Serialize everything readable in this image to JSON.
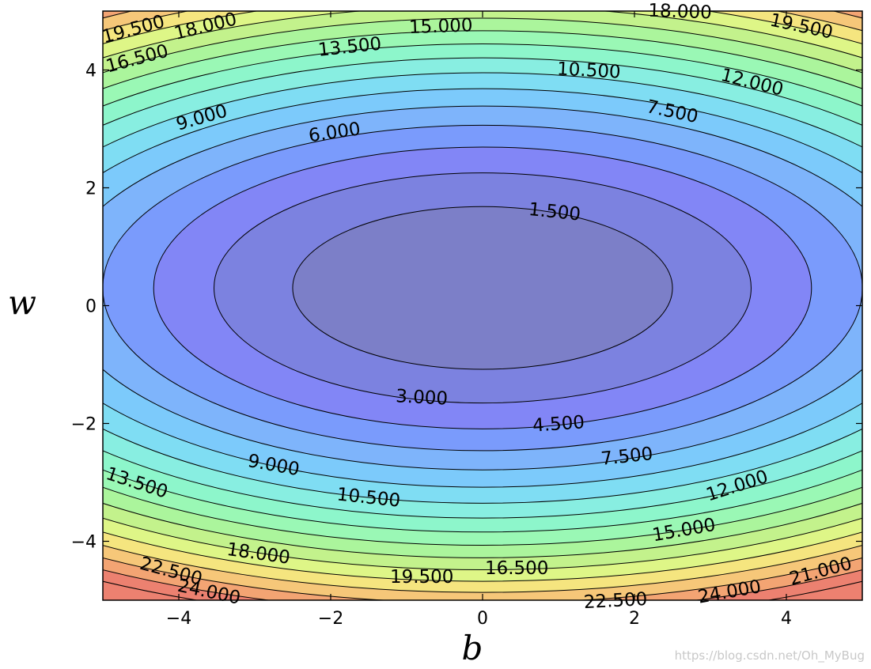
{
  "chart_data": {
    "type": "contour",
    "title": "",
    "xlabel": "b",
    "ylabel": "w",
    "xlim": [
      -5,
      5
    ],
    "ylim": [
      -5,
      5
    ],
    "xticks": [
      -4,
      -2,
      0,
      2,
      4
    ],
    "yticks": [
      -4,
      -2,
      0,
      2,
      4
    ],
    "xtick_labels": [
      "−4",
      "−2",
      "0",
      "2",
      "4"
    ],
    "ytick_labels": [
      "−4",
      "−2",
      "0",
      "2",
      "4"
    ],
    "center": [
      0,
      0.3
    ],
    "levels": [
      1.5,
      3.0,
      4.5,
      6.0,
      7.5,
      9.0,
      10.5,
      12.0,
      13.5,
      15.0,
      16.5,
      18.0,
      19.5,
      21.0,
      22.5,
      24.0,
      25.5
    ],
    "level_colors": [
      "#7c7fc8",
      "#7c82e0",
      "#8286f6",
      "#7a9bfc",
      "#7eb4fb",
      "#7ccafb",
      "#7fddf3",
      "#88eee1",
      "#8df6cb",
      "#9af8b5",
      "#abf59c",
      "#c3f28c",
      "#def687",
      "#f5e57f",
      "#f6c779",
      "#f3a473",
      "#ec8170"
    ],
    "contour_labels": [
      {
        "text": "1.500",
        "b": 0.95,
        "w": 1.6,
        "angle": 6
      },
      {
        "text": "3.000",
        "b": -0.8,
        "w": -1.55,
        "angle": 3
      },
      {
        "text": "4.500",
        "b": 1.0,
        "w": -2.0,
        "angle": -4
      },
      {
        "text": "6.000",
        "b": -1.95,
        "w": 2.95,
        "angle": -8
      },
      {
        "text": "7.500",
        "b": 1.9,
        "w": -2.55,
        "angle": -6
      },
      {
        "text": "7.500",
        "b": 2.5,
        "w": 3.3,
        "angle": 12
      },
      {
        "text": "9.000",
        "b": -3.7,
        "w": 3.2,
        "angle": -16
      },
      {
        "text": "9.000",
        "b": -2.75,
        "w": -2.7,
        "angle": 10
      },
      {
        "text": "10.500",
        "b": 1.4,
        "w": 4.0,
        "angle": 3
      },
      {
        "text": "10.500",
        "b": -1.5,
        "w": -3.25,
        "angle": 6
      },
      {
        "text": "12.000",
        "b": 3.55,
        "w": 3.8,
        "angle": 14
      },
      {
        "text": "12.000",
        "b": 3.35,
        "w": -3.05,
        "angle": -18
      },
      {
        "text": "13.500",
        "b": -1.75,
        "w": 4.4,
        "angle": -6
      },
      {
        "text": "13.500",
        "b": -4.55,
        "w": -3.0,
        "angle": 18
      },
      {
        "text": "15.000",
        "b": -0.55,
        "w": 4.75,
        "angle": -2
      },
      {
        "text": "15.000",
        "b": 2.65,
        "w": -3.8,
        "angle": -10
      },
      {
        "text": "16.500",
        "b": -4.55,
        "w": 4.2,
        "angle": -15
      },
      {
        "text": "16.500",
        "b": 0.45,
        "w": -4.45,
        "angle": 0
      },
      {
        "text": "18.000",
        "b": -3.65,
        "w": 4.75,
        "angle": -14
      },
      {
        "text": "18.000",
        "b": -2.95,
        "w": -4.2,
        "angle": 8
      },
      {
        "text": "18.000",
        "b": 2.6,
        "w": 5.0,
        "angle": 2
      },
      {
        "text": "19.500",
        "b": -4.6,
        "w": 4.7,
        "angle": -15
      },
      {
        "text": "19.500",
        "b": 4.2,
        "w": 4.75,
        "angle": 12
      },
      {
        "text": "19.500",
        "b": -0.8,
        "w": -4.6,
        "angle": 0
      },
      {
        "text": "21.000",
        "b": 4.45,
        "w": -4.5,
        "angle": -15
      },
      {
        "text": "22.500",
        "b": -4.1,
        "w": -4.5,
        "angle": 15
      },
      {
        "text": "22.500",
        "b": 1.75,
        "w": -5.0,
        "angle": -3
      },
      {
        "text": "24.000",
        "b": -3.6,
        "w": -4.85,
        "angle": 12
      },
      {
        "text": "24.000",
        "b": 3.25,
        "w": -4.85,
        "angle": -10
      }
    ]
  },
  "watermark": "https://blog.csdn.net/Oh_MyBug"
}
